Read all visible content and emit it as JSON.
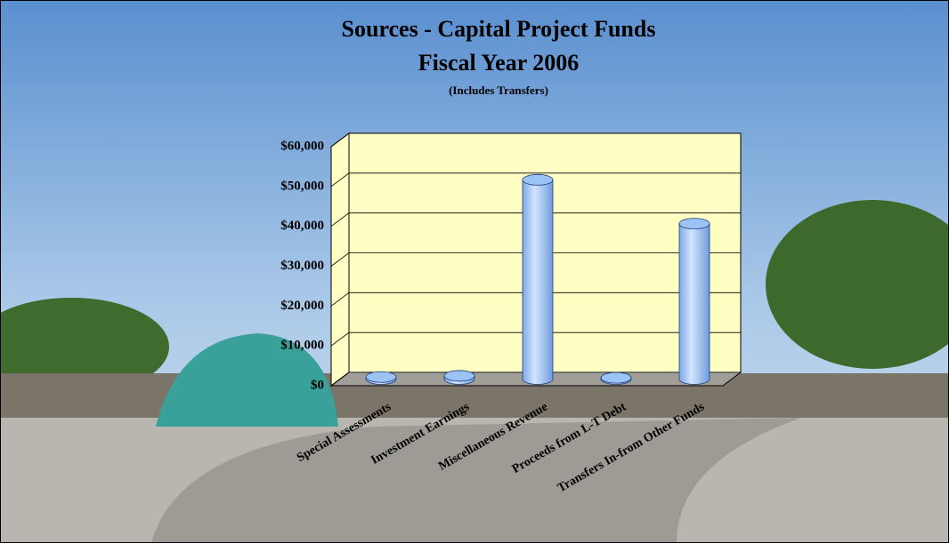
{
  "chart_data": {
    "type": "bar",
    "title": "Sources - Capital Project Funds",
    "subtitle": "Fiscal Year 2006",
    "note": "(Includes Transfers)",
    "categories": [
      "Special Assessments",
      "Investment Earnings",
      "Miscellaneous Revenue",
      "Proceeds from L-T Debt",
      "Transfers In-from Other Funds"
    ],
    "values": [
      500,
      800,
      50000,
      300,
      39000
    ],
    "color": "#9cc3f5",
    "ylim": [
      0,
      60000
    ],
    "yticks": [
      {
        "value": 0,
        "label": "$0"
      },
      {
        "value": 10000,
        "label": "$10,000"
      },
      {
        "value": 20000,
        "label": "$20,000"
      },
      {
        "value": 30000,
        "label": "$30,000"
      },
      {
        "value": 40000,
        "label": "$40,000"
      },
      {
        "value": 50000,
        "label": "$50,000"
      },
      {
        "value": 60000,
        "label": "$60,000"
      }
    ],
    "grid": true
  }
}
